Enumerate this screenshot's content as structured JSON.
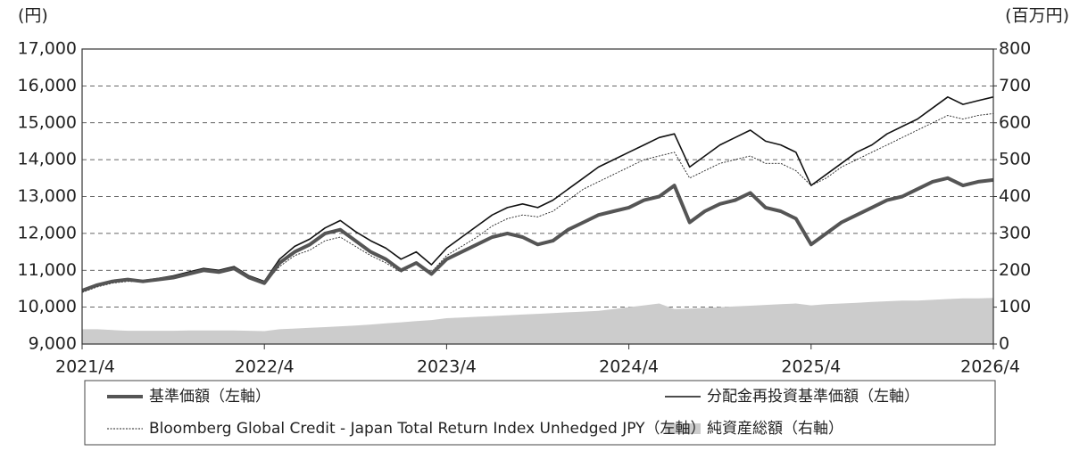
{
  "chart_data": {
    "type": "line",
    "ylabel": "(円)",
    "y2label": "(百万円)",
    "x": [
      "2021/4",
      "2021/5",
      "2021/6",
      "2021/7",
      "2021/8",
      "2021/9",
      "2021/10",
      "2021/11",
      "2021/12",
      "2022/1",
      "2022/2",
      "2022/3",
      "2022/4",
      "2022/5",
      "2022/6",
      "2022/7",
      "2022/8",
      "2022/9",
      "2022/10",
      "2022/11",
      "2022/12",
      "2023/1",
      "2023/2",
      "2023/3",
      "2023/4",
      "2023/5",
      "2023/6",
      "2023/7",
      "2023/8",
      "2023/9",
      "2023/10",
      "2023/11",
      "2023/12",
      "2024/1",
      "2024/2",
      "2024/3",
      "2024/4",
      "2024/5",
      "2024/6",
      "2024/7",
      "2024/8",
      "2024/9",
      "2024/10",
      "2024/11",
      "2024/12",
      "2025/1",
      "2025/2",
      "2025/3",
      "2025/4",
      "2025/5",
      "2025/6",
      "2025/7",
      "2025/8",
      "2025/9",
      "2025/10",
      "2025/11",
      "2025/12",
      "2026/1",
      "2026/2",
      "2026/3",
      "2026/4"
    ],
    "xticks": [
      "2021/4",
      "2022/4",
      "2023/4",
      "2024/4",
      "2025/4",
      "2026/4"
    ],
    "ylim": [
      9000,
      17000
    ],
    "yticks": [
      {
        "value": 9000,
        "label": "9,000"
      },
      {
        "value": 10000,
        "label": "10,000"
      },
      {
        "value": 11000,
        "label": "11,000"
      },
      {
        "value": 12000,
        "label": "12,000"
      },
      {
        "value": 13000,
        "label": "13,000"
      },
      {
        "value": 14000,
        "label": "14,000"
      },
      {
        "value": 15000,
        "label": "15,000"
      },
      {
        "value": 16000,
        "label": "16,000"
      },
      {
        "value": 17000,
        "label": "17,000"
      }
    ],
    "y2lim": [
      0,
      800
    ],
    "y2ticks": [
      0,
      100,
      200,
      300,
      400,
      500,
      600,
      700,
      800
    ],
    "grid": true,
    "series": [
      {
        "name": "純資産総額（右軸）",
        "color": "#cccccc",
        "kind": "area",
        "axis": "y2",
        "values": [
          40,
          40,
          38,
          36,
          36,
          36,
          36,
          37,
          37,
          37,
          37,
          36,
          35,
          40,
          42,
          44,
          46,
          48,
          50,
          53,
          56,
          59,
          62,
          65,
          70,
          72,
          74,
          76,
          78,
          80,
          82,
          84,
          86,
          88,
          90,
          95,
          100,
          105,
          110,
          95,
          96,
          98,
          100,
          102,
          104,
          106,
          108,
          110,
          105,
          108,
          110,
          112,
          114,
          116,
          118,
          118,
          120,
          122,
          124,
          124,
          125
        ]
      },
      {
        "name": "Bloomberg Global Credit - Japan Total Return Index Unhedged JPY（左軸）",
        "color": "#222222",
        "kind": "dotted",
        "values": [
          10400,
          10550,
          10650,
          10700,
          10680,
          10740,
          10800,
          10900,
          11000,
          10950,
          11050,
          10800,
          10650,
          11100,
          11400,
          11550,
          11800,
          11900,
          11650,
          11400,
          11200,
          10950,
          11200,
          10950,
          11400,
          11650,
          11900,
          12200,
          12400,
          12500,
          12450,
          12600,
          12900,
          13200,
          13400,
          13600,
          13800,
          14000,
          14100,
          14200,
          13500,
          13700,
          13900,
          14000,
          14100,
          13900,
          13900,
          13700,
          13300,
          13500,
          13800,
          14000,
          14200,
          14400,
          14600,
          14800,
          15000,
          15200,
          15100,
          15200,
          15250
        ]
      },
      {
        "name": "分配金再投資基準価額（左軸）",
        "color": "#111111",
        "kind": "thin",
        "values": [
          10450,
          10600,
          10700,
          10750,
          10720,
          10780,
          10850,
          10950,
          11050,
          11000,
          11100,
          10850,
          10700,
          11300,
          11650,
          11850,
          12150,
          12350,
          12050,
          11800,
          11600,
          11300,
          11500,
          11150,
          11600,
          11900,
          12200,
          12500,
          12700,
          12800,
          12700,
          12900,
          13200,
          13500,
          13800,
          14000,
          14200,
          14400,
          14600,
          14700,
          13800,
          14100,
          14400,
          14600,
          14800,
          14500,
          14400,
          14200,
          13300,
          13600,
          13900,
          14200,
          14400,
          14700,
          14900,
          15100,
          15400,
          15700,
          15500,
          15600,
          15700
        ]
      },
      {
        "name": "基準価額（左軸）",
        "color": "#555555",
        "kind": "thick",
        "values": [
          10450,
          10600,
          10700,
          10750,
          10700,
          10750,
          10800,
          10900,
          11000,
          10950,
          11050,
          10800,
          10650,
          11200,
          11500,
          11700,
          12000,
          12100,
          11800,
          11500,
          11300,
          11000,
          11200,
          10900,
          11300,
          11500,
          11700,
          11900,
          12000,
          11900,
          11700,
          11800,
          12100,
          12300,
          12500,
          12600,
          12700,
          12900,
          13000,
          13300,
          12300,
          12600,
          12800,
          12900,
          13100,
          12700,
          12600,
          12400,
          11700,
          12000,
          12300,
          12500,
          12700,
          12900,
          13000,
          13200,
          13400,
          13500,
          13300,
          13400,
          13450
        ]
      }
    ]
  }
}
